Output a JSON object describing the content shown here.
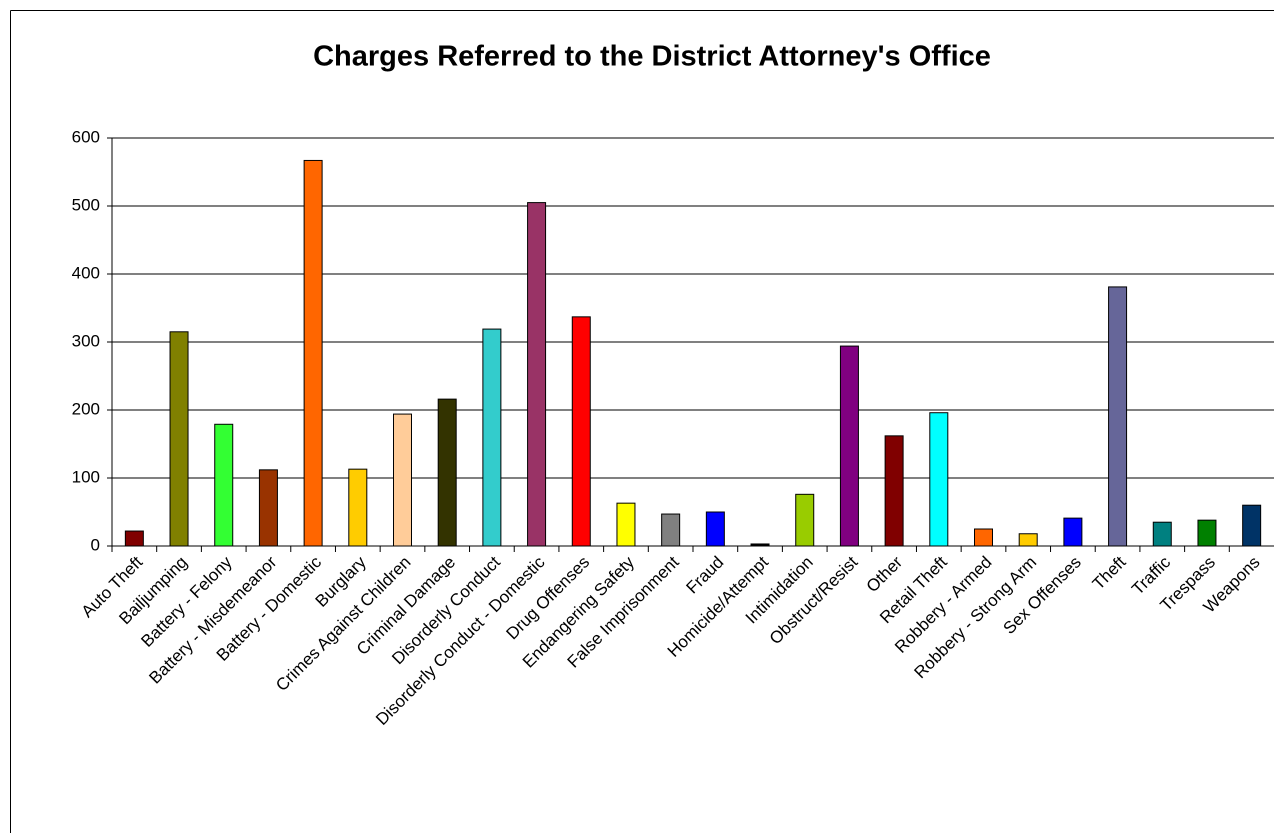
{
  "chart_data": {
    "type": "bar",
    "title": "Charges Referred to the District Attorney's Office",
    "categories": [
      "Auto Theft",
      "Bailjumping",
      "Battery - Felony",
      "Battery - Misdemeanor",
      "Battery - Domestic",
      "Burglary",
      "Crimes Against Children",
      "Criminal Damage",
      "Disorderly Conduct",
      "Disorderly Conduct - Domestic",
      "Drug Offenses",
      "Endangering Safety",
      "False Imprisonment",
      "Fraud",
      "Homicide/Attempt",
      "Intimidation",
      "Obstruct/Resist",
      "Other",
      "Retail Theft",
      "Robbery - Armed",
      "Robbery - Strong Arm",
      "Sex Offenses",
      "Theft",
      "Traffic",
      "Trespass",
      "Weapons"
    ],
    "values": [
      22,
      315,
      179,
      112,
      567,
      113,
      194,
      216,
      319,
      505,
      337,
      63,
      47,
      50,
      3,
      76,
      294,
      162,
      196,
      25,
      18,
      41,
      381,
      35,
      38,
      60
    ],
    "colors": [
      "#800000",
      "#808000",
      "#33ff33",
      "#993300",
      "#ff6600",
      "#ffcc00",
      "#ffcc99",
      "#333300",
      "#33cccc",
      "#993366",
      "#ff0000",
      "#ffff00",
      "#808080",
      "#0000ff",
      "#000000",
      "#99cc00",
      "#800080",
      "#800000",
      "#00ffff",
      "#ff6600",
      "#ffcc00",
      "#0000ff",
      "#666699",
      "#008080",
      "#008000",
      "#003366"
    ],
    "ylim": [
      0,
      600
    ],
    "yticks": [
      0,
      100,
      200,
      300,
      400,
      500,
      600
    ],
    "grid": true
  }
}
